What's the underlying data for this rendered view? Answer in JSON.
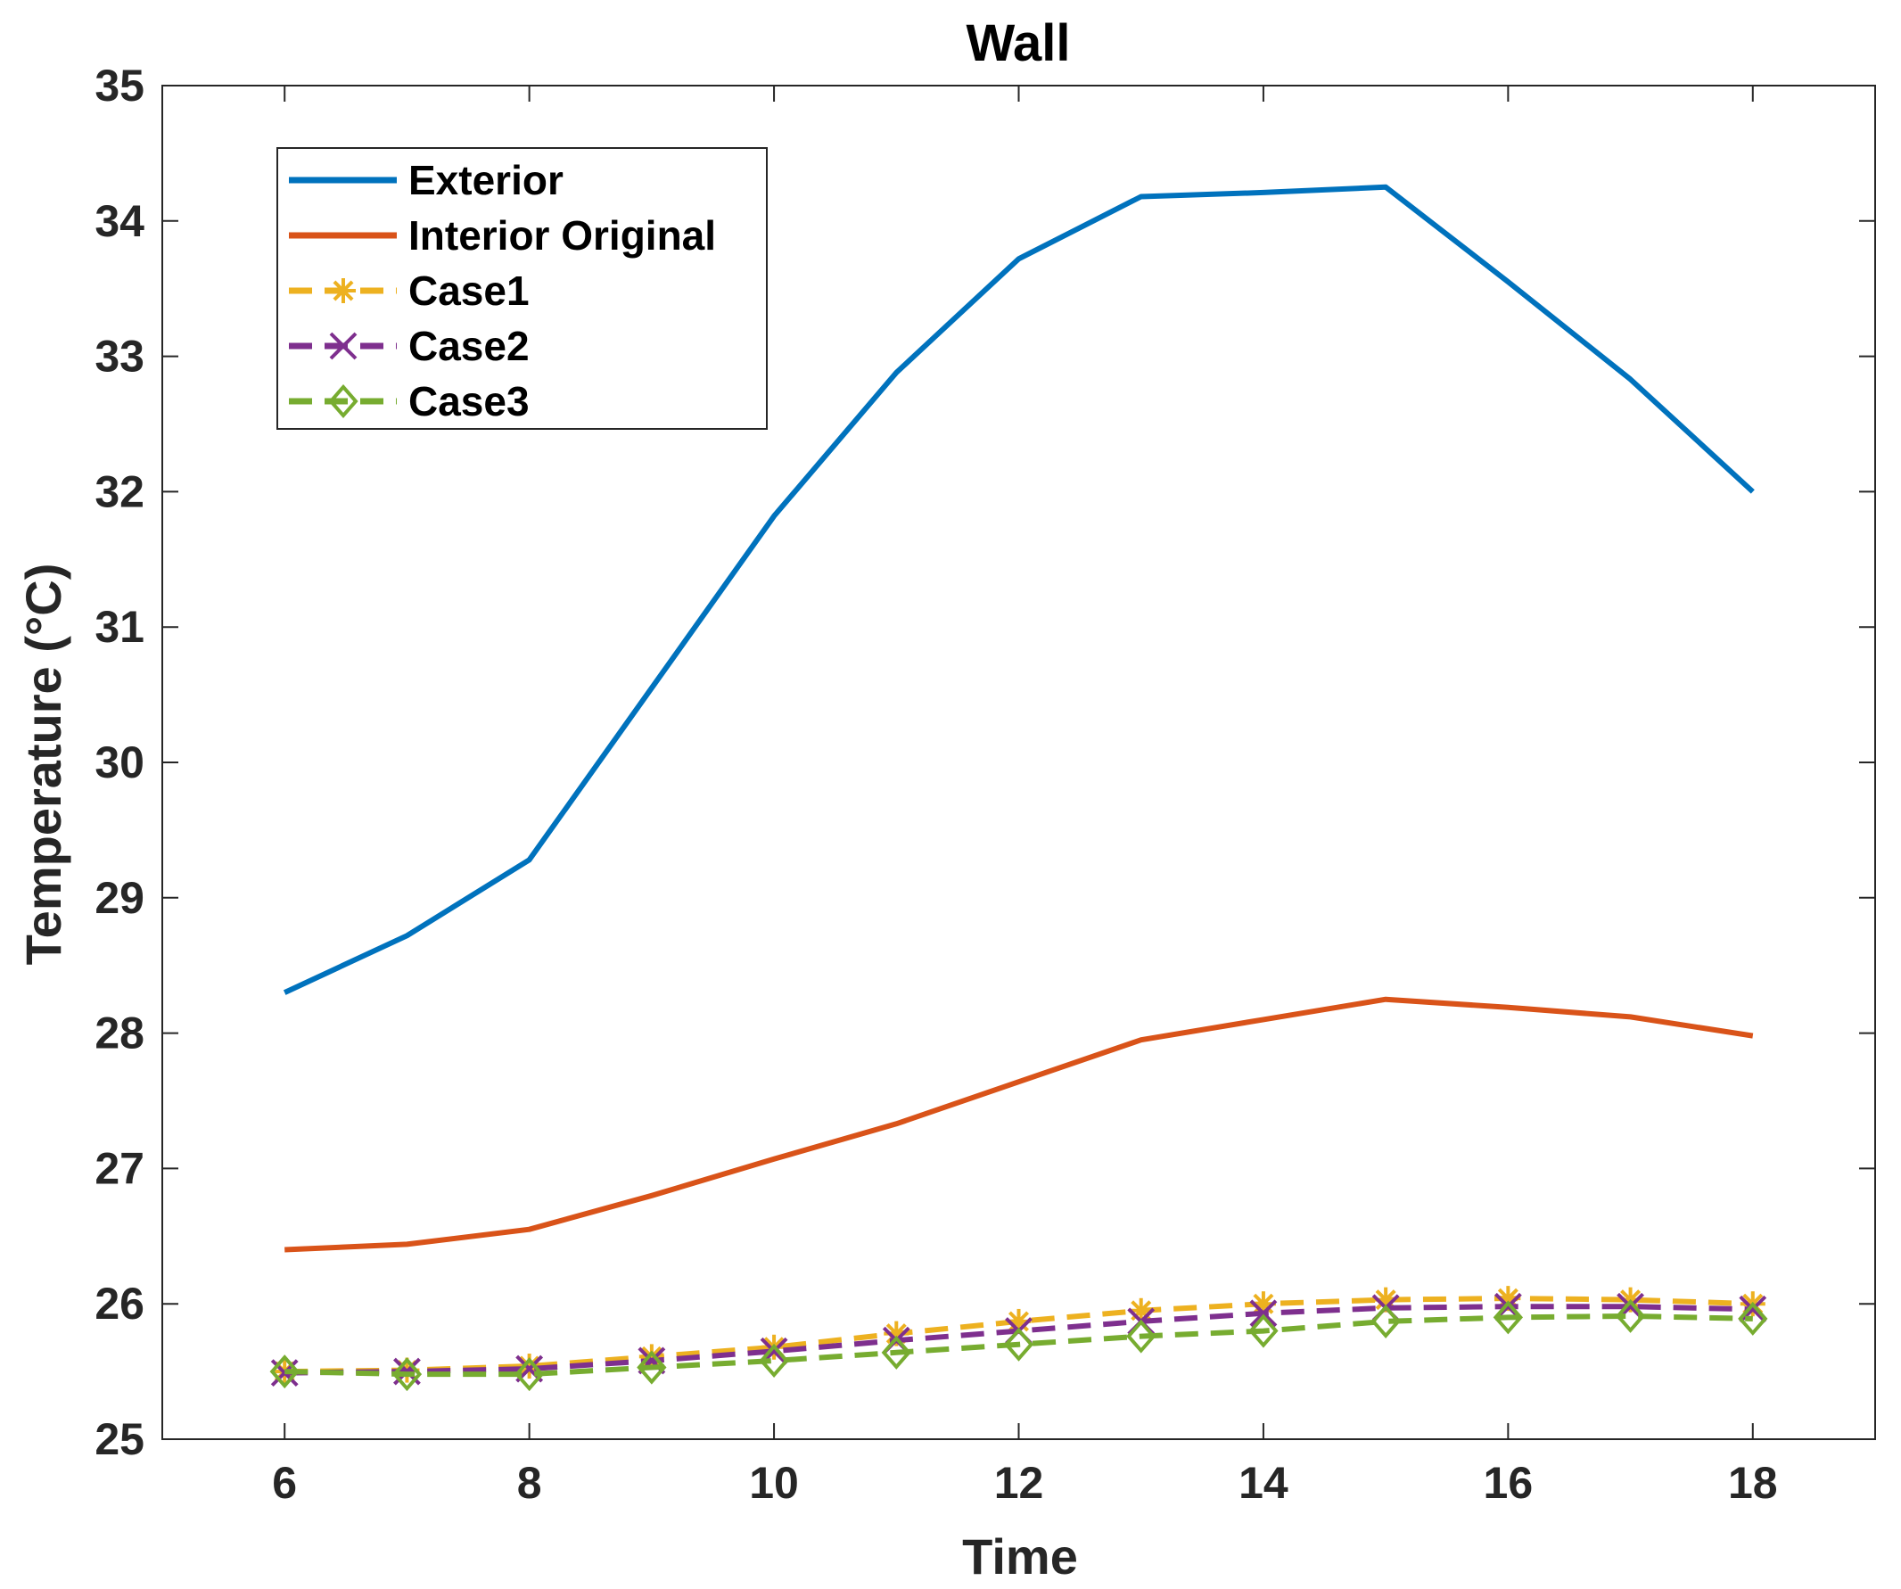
{
  "chart_data": {
    "type": "line",
    "title": "Wall",
    "xlabel": "Time",
    "ylabel": "Temperature (°C)",
    "xlim": [
      5,
      19
    ],
    "ylim": [
      25,
      35
    ],
    "xticks": [
      6,
      8,
      10,
      12,
      14,
      16,
      18
    ],
    "yticks": [
      25,
      26,
      27,
      28,
      29,
      30,
      31,
      32,
      33,
      34,
      35
    ],
    "x": [
      6,
      7,
      8,
      9,
      10,
      11,
      12,
      13,
      14,
      15,
      16,
      17,
      18
    ],
    "grid": false,
    "legend_position": "top-left",
    "series": [
      {
        "name": "Exterior",
        "color": "#0072BD",
        "style": "solid",
        "marker": "none",
        "values": [
          28.3,
          28.72,
          29.28,
          30.55,
          31.82,
          32.88,
          33.72,
          34.18,
          34.21,
          34.25,
          33.55,
          32.83,
          32.0
        ]
      },
      {
        "name": "Interior Original",
        "color": "#D95319",
        "style": "solid",
        "marker": "none",
        "values": [
          26.4,
          26.44,
          26.55,
          26.8,
          27.07,
          27.33,
          27.64,
          27.95,
          28.1,
          28.25,
          28.19,
          28.12,
          27.98
        ]
      },
      {
        "name": "Case1",
        "color": "#EDB120",
        "style": "dashed",
        "marker": "asterisk",
        "values": [
          25.5,
          25.51,
          25.54,
          25.61,
          25.68,
          25.78,
          25.87,
          25.95,
          26.0,
          26.03,
          26.04,
          26.03,
          26.0
        ]
      },
      {
        "name": "Case2",
        "color": "#7E2F8E",
        "style": "dashed",
        "marker": "x",
        "values": [
          25.49,
          25.5,
          25.52,
          25.58,
          25.65,
          25.73,
          25.8,
          25.87,
          25.93,
          25.97,
          25.98,
          25.98,
          25.96
        ]
      },
      {
        "name": "Case3",
        "color": "#77AC30",
        "style": "dashed",
        "marker": "diamond",
        "values": [
          25.5,
          25.48,
          25.48,
          25.53,
          25.58,
          25.64,
          25.7,
          25.76,
          25.8,
          25.87,
          25.9,
          25.91,
          25.89
        ]
      }
    ]
  }
}
